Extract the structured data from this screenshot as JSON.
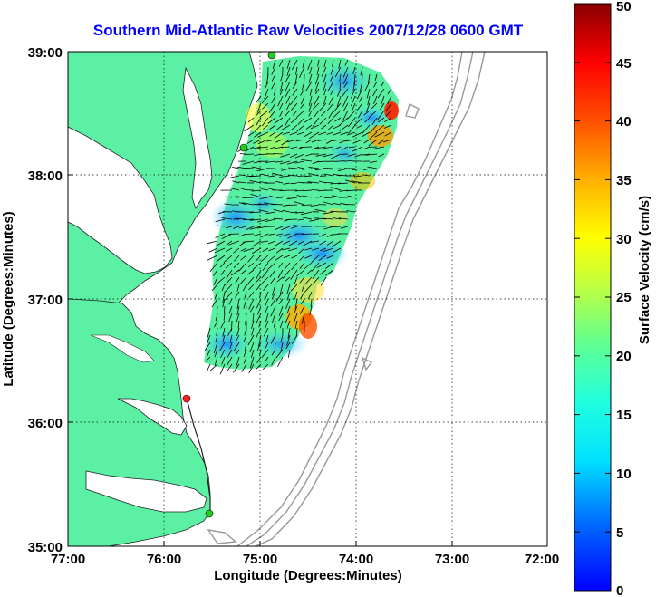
{
  "title": "Southern Mid-Atlantic Raw Velocities 2007/12/28 0600 GMT",
  "xlabel": "Longitude (Degrees:Minutes)",
  "ylabel": "Latitude (Degrees:Minutes)",
  "colorbar": {
    "label": "Surface Velocity (cm/s)",
    "ticks": [
      "0",
      "5",
      "10",
      "15",
      "20",
      "25",
      "30",
      "35",
      "40",
      "45",
      "50"
    ],
    "min": 0,
    "max": 50
  },
  "x_ticks": [
    "77:00",
    "76:00",
    "75:00",
    "74:00",
    "73:00",
    "72:00"
  ],
  "y_ticks": [
    "39:00",
    "38:00",
    "37:00",
    "36:00",
    "35:00"
  ],
  "colors": {
    "land": "#5cf0a4",
    "contour": "#999999",
    "title": "#0000ff",
    "station_green": "#22cc22",
    "station_red": "#ff2020"
  }
}
